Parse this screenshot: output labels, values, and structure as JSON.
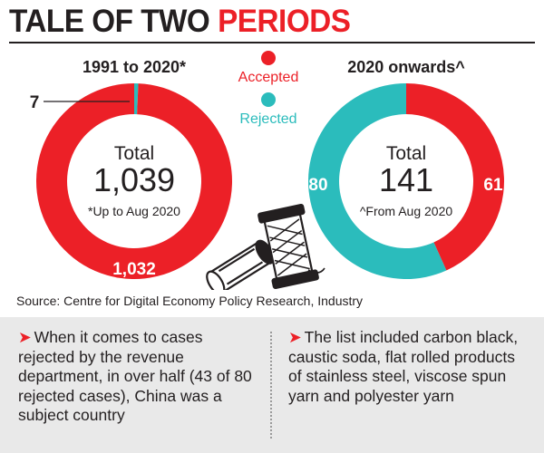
{
  "headline": {
    "part1": "TALE OF TWO",
    "part2": "PERIODS"
  },
  "legend": {
    "accepted": "Accepted",
    "rejected": "Rejected"
  },
  "colors": {
    "accepted": "#ec2027",
    "rejected": "#2bbcbc",
    "accent": "#ec2027",
    "panel": "#e9e9e9"
  },
  "chart_data": [
    {
      "type": "pie",
      "title": "1991 to 2020*",
      "center_label": "Total",
      "total": "1,039",
      "note": "*Up to Aug 2020",
      "series": [
        {
          "name": "Accepted",
          "value": 1032,
          "label": "1,032"
        },
        {
          "name": "Rejected",
          "value": 7,
          "label": "7"
        }
      ]
    },
    {
      "type": "pie",
      "title": "2020 onwards^",
      "center_label": "Total",
      "total": "141",
      "note": "^From Aug 2020",
      "series": [
        {
          "name": "Accepted",
          "value": 61,
          "label": "61"
        },
        {
          "name": "Rejected",
          "value": 80,
          "label": "80"
        }
      ]
    }
  ],
  "source": "Source: Centre for Digital Economy Policy Research, Industry",
  "notes": [
    {
      "arrow": "➤",
      "text": "When it comes to cases rejected by the revenue department, in over half (43 of 80 rejected cases), China was a subject country"
    },
    {
      "arrow": "➤",
      "text": "The list included carbon black, caustic soda, flat rolled products of stainless steel, viscose spun yarn and polyester yarn"
    }
  ],
  "illustration": {
    "icon": "yarn-spools-icon"
  }
}
